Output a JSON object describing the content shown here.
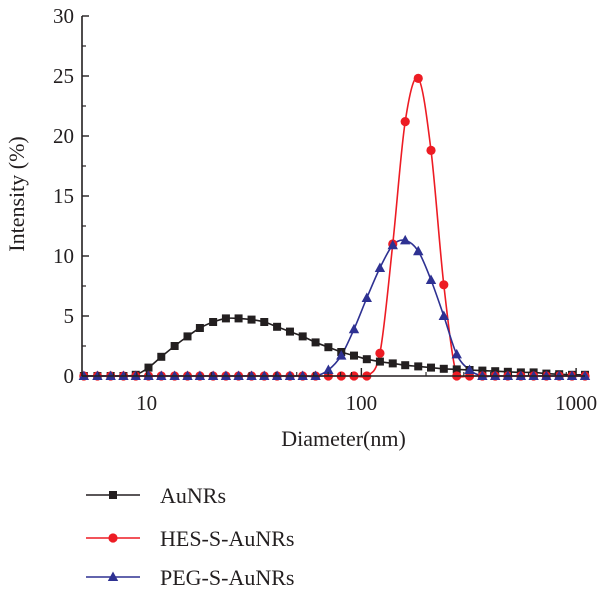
{
  "chart_data": {
    "type": "line",
    "title": "",
    "xlabel": "Diameter(nm)",
    "ylabel": "Intensity (%)",
    "xscale": "log",
    "xlim": [
      5,
      1100
    ],
    "ylim": [
      0,
      30
    ],
    "xticks": [
      10,
      100,
      1000
    ],
    "xtick_labels": [
      "10",
      "100",
      "1000"
    ],
    "yticks": [
      0,
      5,
      10,
      15,
      20,
      25,
      30
    ],
    "ytick_labels": [
      "0",
      "5",
      "10",
      "15",
      "20",
      "25",
      "30"
    ],
    "grid": false,
    "legend_position": "bottom",
    "series": [
      {
        "name": "AuNRs",
        "color": "#231f20",
        "marker": "square",
        "x": [
          5.1,
          5.9,
          6.8,
          7.8,
          8.9,
          10.2,
          11.7,
          13.5,
          15.5,
          17.7,
          20.4,
          23.4,
          26.8,
          30.8,
          35.3,
          40.5,
          46.5,
          53.3,
          61.2,
          70.2,
          80.6,
          92.4,
          106,
          122,
          140,
          160,
          184,
          211,
          242,
          278,
          319,
          366,
          420,
          481,
          553,
          634,
          727,
          834,
          957,
          1100
        ],
        "y": [
          0,
          0,
          0,
          0,
          0.1,
          0.7,
          1.6,
          2.5,
          3.3,
          4.0,
          4.5,
          4.8,
          4.8,
          4.7,
          4.5,
          4.1,
          3.7,
          3.3,
          2.8,
          2.4,
          2.0,
          1.7,
          1.4,
          1.2,
          1.05,
          0.9,
          0.8,
          0.7,
          0.6,
          0.55,
          0.5,
          0.45,
          0.4,
          0.35,
          0.3,
          0.3,
          0.2,
          0.15,
          0.1,
          0.1
        ]
      },
      {
        "name": "HES-S-AuNRs",
        "color": "#ed1c24",
        "marker": "circle",
        "x": [
          5.1,
          5.9,
          6.8,
          7.8,
          8.9,
          10.2,
          11.7,
          13.5,
          15.5,
          17.7,
          20.4,
          23.4,
          26.8,
          30.8,
          35.3,
          40.5,
          46.5,
          53.3,
          61.2,
          70.2,
          80.6,
          92.4,
          106,
          122,
          140,
          160,
          184,
          211,
          242,
          278,
          319,
          366,
          420,
          481,
          553,
          634,
          727,
          834,
          957,
          1100
        ],
        "y": [
          0,
          0,
          0,
          0,
          0,
          0,
          0,
          0,
          0,
          0,
          0,
          0,
          0,
          0,
          0,
          0,
          0,
          0,
          0,
          0,
          0,
          0,
          0,
          1.9,
          11.0,
          21.2,
          24.8,
          18.8,
          7.6,
          0,
          0,
          0,
          0,
          0,
          0,
          0,
          0,
          0,
          0,
          0
        ]
      },
      {
        "name": "PEG-S-AuNRs",
        "color": "#2e3192",
        "marker": "triangle",
        "x": [
          5.1,
          5.9,
          6.8,
          7.8,
          8.9,
          10.2,
          11.7,
          13.5,
          15.5,
          17.7,
          20.4,
          23.4,
          26.8,
          30.8,
          35.3,
          40.5,
          46.5,
          53.3,
          61.2,
          70.2,
          80.6,
          92.4,
          106,
          122,
          140,
          160,
          184,
          211,
          242,
          278,
          319,
          366,
          420,
          481,
          553,
          634,
          727,
          834,
          957,
          1100
        ],
        "y": [
          0,
          0,
          0,
          0,
          0,
          0,
          0,
          0,
          0,
          0,
          0,
          0,
          0,
          0,
          0,
          0,
          0,
          0,
          0,
          0.5,
          1.7,
          3.9,
          6.5,
          9.0,
          10.9,
          11.3,
          10.4,
          8.0,
          5.0,
          1.8,
          0.5,
          0,
          0,
          0,
          0,
          0,
          0,
          0,
          0,
          0
        ]
      }
    ]
  }
}
